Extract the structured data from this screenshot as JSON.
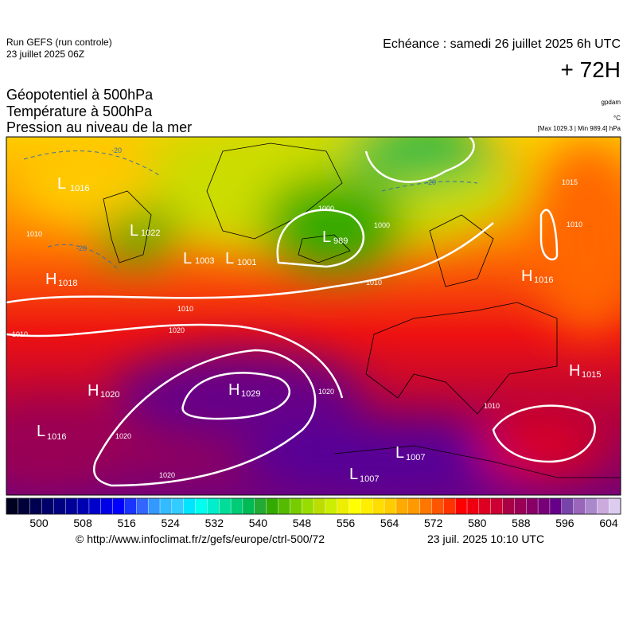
{
  "header": {
    "run": "Run GEFS (run controle)",
    "run_date": "23 juillet 2025 06Z",
    "valid": "Echéance : samedi 26 juillet 2025 6h UTC",
    "lead": "+ 72H"
  },
  "fields": [
    "Géopotentiel à 500hPa",
    "Température à 500hPa",
    "Pression au niveau de la mer"
  ],
  "units": [
    "gpdam",
    "°C",
    "[Max 1029.3 | Min 989.4] hPa"
  ],
  "centers": [
    {
      "kind": "L",
      "value": "1016"
    },
    {
      "kind": "L",
      "value": "1022"
    },
    {
      "kind": "L",
      "value": "1003"
    },
    {
      "kind": "L",
      "value": "1001"
    },
    {
      "kind": "L",
      "value": "989"
    },
    {
      "kind": "H",
      "value": "1018"
    },
    {
      "kind": "H",
      "value": "1016"
    },
    {
      "kind": "H",
      "value": "1029"
    },
    {
      "kind": "H",
      "value": "1020"
    },
    {
      "kind": "L",
      "value": "1016"
    },
    {
      "kind": "L",
      "value": "1007"
    },
    {
      "kind": "L",
      "value": "1007"
    },
    {
      "kind": "H",
      "value": "1015"
    }
  ],
  "isobar_labels": [
    "1010",
    "1010",
    "1020",
    "1010",
    "1000",
    "1000",
    "1010",
    "1015",
    "1010",
    "1020",
    "1020",
    "1020",
    "1010"
  ],
  "temperature_labels": [
    "-20",
    "-20",
    "-20"
  ],
  "colorbar": {
    "ticks": [
      500,
      508,
      516,
      524,
      532,
      540,
      548,
      556,
      564,
      572,
      580,
      588,
      596,
      604
    ],
    "colors": [
      "#000020",
      "#00003a",
      "#000050",
      "#00006a",
      "#000080",
      "#000099",
      "#0000b3",
      "#0000cc",
      "#0000e6",
      "#0000ff",
      "#1a33ff",
      "#3366ff",
      "#3399ff",
      "#33bbff",
      "#33ccff",
      "#00e5ff",
      "#00ffee",
      "#00eecc",
      "#00dd99",
      "#00cc77",
      "#00bb55",
      "#22aa33",
      "#33aa00",
      "#55bb00",
      "#77cc00",
      "#99dd00",
      "#bbdd00",
      "#ccee00",
      "#eeee00",
      "#ffff00",
      "#ffee00",
      "#ffdd00",
      "#ffcc00",
      "#ffaa00",
      "#ff9900",
      "#ff7700",
      "#ff5500",
      "#ff3300",
      "#ff0000",
      "#ee0011",
      "#dd0022",
      "#cc0033",
      "#aa0044",
      "#990055",
      "#880066",
      "#770077",
      "#660088",
      "#7744aa",
      "#9966bb",
      "#aa88cc",
      "#ccaadd",
      "#ddccee"
    ]
  },
  "footer": {
    "source": "© http://www.infoclimat.fr/z/gefs/europe/ctrl-500/72",
    "generated": "23 juil. 2025 10:10 UTC"
  }
}
